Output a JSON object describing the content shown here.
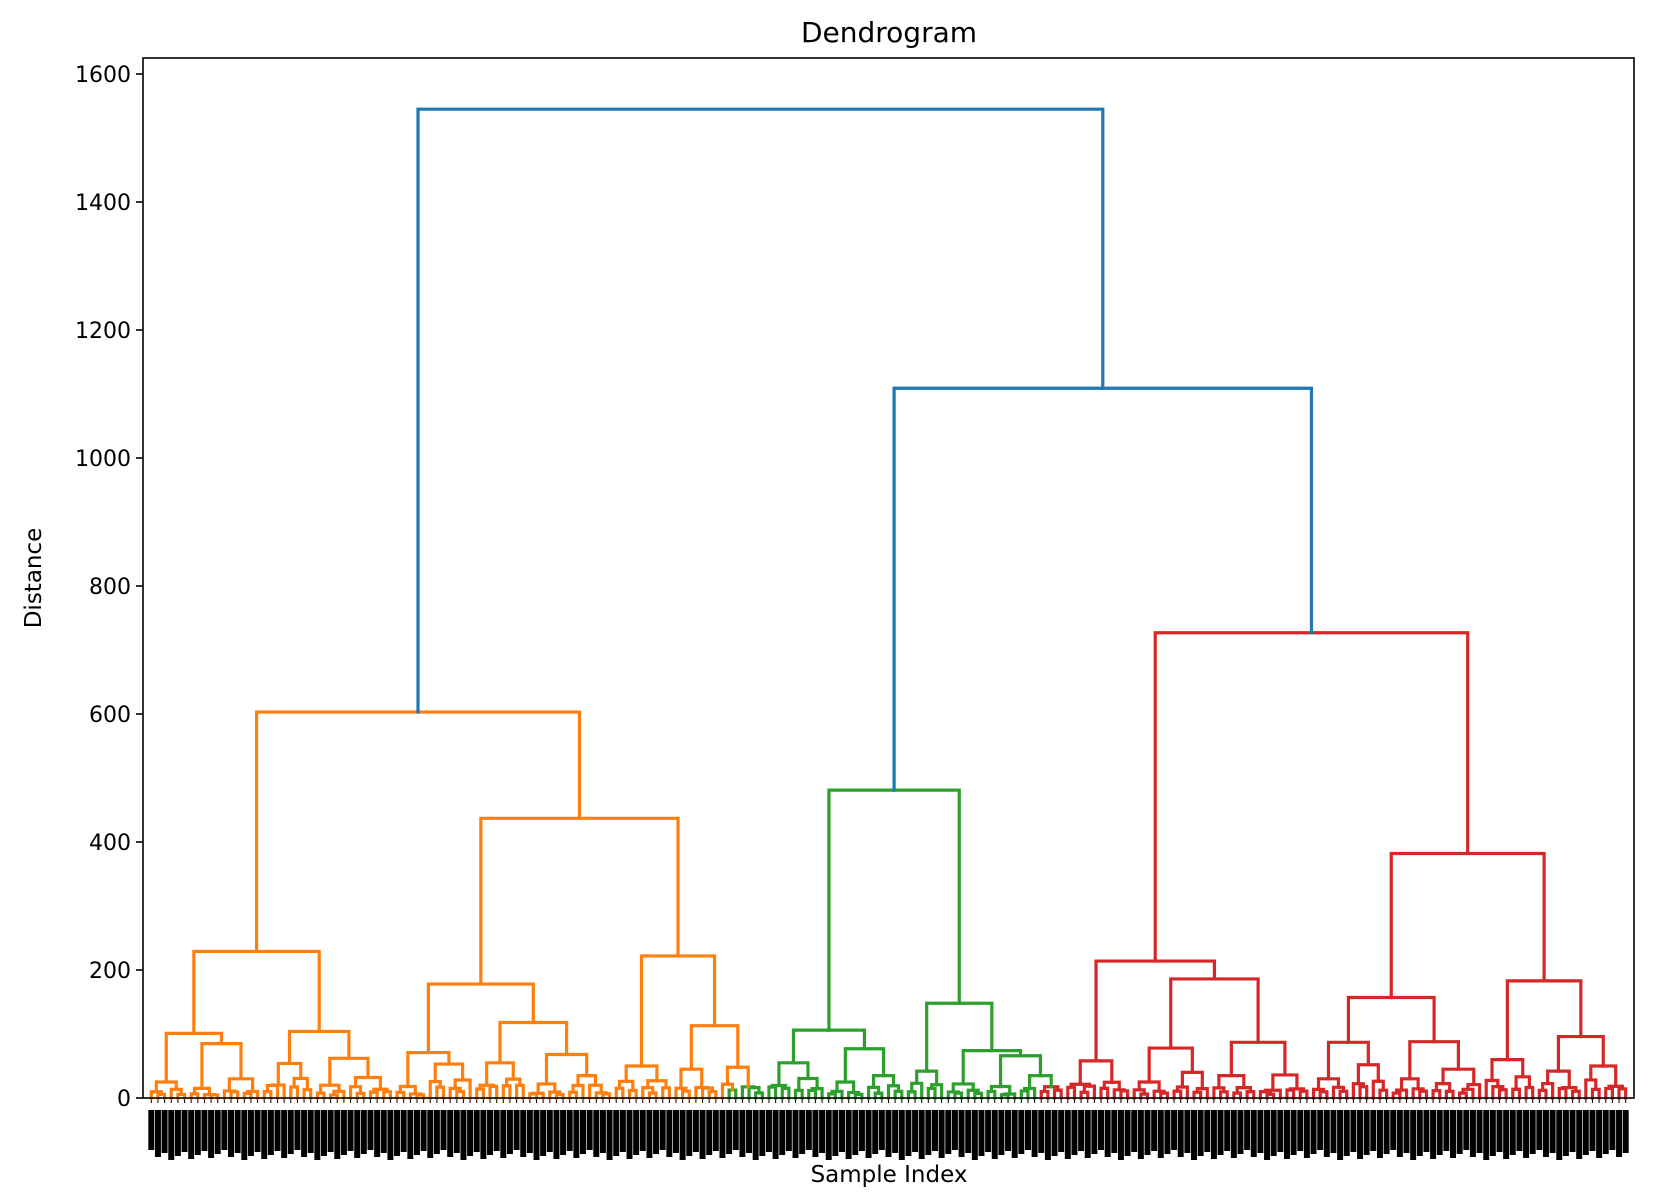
{
  "chart_data": {
    "type": "dendrogram",
    "title": "Dendrogram",
    "xlabel": "Sample Index",
    "ylabel": "Distance",
    "ylim": [
      0,
      1625
    ],
    "yticks": [
      0,
      200,
      400,
      600,
      800,
      1000,
      1200,
      1400,
      1600
    ],
    "grid": false,
    "legend": "none",
    "colors": {
      "C0": "#1f77b4",
      "C1": "#ff7f0e",
      "C2": "#2ca02c",
      "C3": "#d62728"
    },
    "clusters": [
      {
        "color": "C1",
        "height": 603,
        "leaf_range": [
          0,
          0.393
        ]
      },
      {
        "color": "C2",
        "height": 481,
        "leaf_range": [
          0.393,
          0.597
        ]
      },
      {
        "color": "C3",
        "height": 727,
        "leaf_range": [
          0.597,
          1.0
        ]
      }
    ],
    "tree": {
      "h": 1545,
      "c": "C0",
      "ch": [
        {
          "h": 603,
          "c": "C1",
          "ch": [
            {
              "h": 229,
              "c": "C1",
              "ch": [
                {
                  "h": 101,
                  "c": "C1",
                  "ch": [
                    {
                      "h": 25,
                      "n": 6,
                      "c": "C1"
                    },
                    {
                      "h": 85,
                      "c": "C1",
                      "ch": [
                        {
                          "h": 15,
                          "n": 5,
                          "c": "C1"
                        },
                        {
                          "h": 30,
                          "n": 6,
                          "c": "C1"
                        }
                      ]
                    }
                  ]
                },
                {
                  "h": 104,
                  "c": "C1",
                  "ch": [
                    {
                      "h": 54,
                      "n": 8,
                      "c": "C1"
                    },
                    {
                      "h": 62,
                      "c": "C1",
                      "ch": [
                        {
                          "h": 20,
                          "n": 5,
                          "c": "C1"
                        },
                        {
                          "h": 32,
                          "n": 7,
                          "c": "C1"
                        }
                      ]
                    }
                  ]
                }
              ]
            },
            {
              "h": 437,
              "c": "C1",
              "ch": [
                {
                  "h": 178,
                  "c": "C1",
                  "ch": [
                    {
                      "h": 71,
                      "c": "C1",
                      "ch": [
                        {
                          "h": 18,
                          "n": 5,
                          "c": "C1"
                        },
                        {
                          "h": 53,
                          "n": 7,
                          "c": "C1"
                        }
                      ]
                    },
                    {
                      "h": 118,
                      "c": "C1",
                      "ch": [
                        {
                          "h": 55,
                          "n": 8,
                          "c": "C1"
                        },
                        {
                          "h": 68,
                          "c": "C1",
                          "ch": [
                            {
                              "h": 22,
                              "n": 6,
                              "c": "C1"
                            },
                            {
                              "h": 35,
                              "n": 7,
                              "c": "C1"
                            }
                          ]
                        }
                      ]
                    }
                  ]
                },
                {
                  "h": 222,
                  "c": "C1",
                  "ch": [
                    {
                      "h": 50,
                      "n": 9,
                      "c": "C1"
                    },
                    {
                      "h": 113,
                      "c": "C1",
                      "ch": [
                        {
                          "h": 45,
                          "n": 7,
                          "c": "C1"
                        },
                        {
                          "h": 48,
                          "n": 7,
                          "c": "C1"
                        }
                      ]
                    }
                  ]
                }
              ]
            }
          ]
        },
        {
          "h": 1109,
          "c": "C0",
          "ch": [
            {
              "h": 481,
              "c": "C2",
              "ch": [
                {
                  "h": 106,
                  "c": "C2",
                  "ch": [
                    {
                      "h": 55,
                      "n": 9,
                      "c": "C2"
                    },
                    {
                      "h": 77,
                      "c": "C2",
                      "ch": [
                        {
                          "h": 25,
                          "n": 6,
                          "c": "C2"
                        },
                        {
                          "h": 35,
                          "n": 6,
                          "c": "C2"
                        }
                      ]
                    }
                  ]
                },
                {
                  "h": 148,
                  "c": "C2",
                  "ch": [
                    {
                      "h": 42,
                      "n": 6,
                      "c": "C2"
                    },
                    {
                      "h": 74,
                      "c": "C2",
                      "ch": [
                        {
                          "h": 22,
                          "n": 6,
                          "c": "C2"
                        },
                        {
                          "h": 66,
                          "c": "C2",
                          "ch": [
                            {
                              "h": 18,
                              "n": 5,
                              "c": "C2"
                            },
                            {
                              "h": 35,
                              "n": 7,
                              "c": "C2"
                            }
                          ]
                        }
                      ]
                    }
                  ]
                }
              ]
            },
            {
              "h": 727,
              "c": "C3",
              "ch": [
                {
                  "h": 214,
                  "c": "C3",
                  "ch": [
                    {
                      "h": 58,
                      "n": 10,
                      "c": "C3"
                    },
                    {
                      "h": 186,
                      "c": "C3",
                      "ch": [
                        {
                          "h": 78,
                          "c": "C3",
                          "ch": [
                            {
                              "h": 25,
                              "n": 6,
                              "c": "C3"
                            },
                            {
                              "h": 40,
                              "n": 6,
                              "c": "C3"
                            }
                          ]
                        },
                        {
                          "h": 87,
                          "c": "C3",
                          "ch": [
                            {
                              "h": 35,
                              "n": 7,
                              "c": "C3"
                            },
                            {
                              "h": 36,
                              "n": 8,
                              "c": "C3"
                            }
                          ]
                        }
                      ]
                    }
                  ]
                },
                {
                  "h": 382,
                  "c": "C3",
                  "ch": [
                    {
                      "h": 157,
                      "c": "C3",
                      "ch": [
                        {
                          "h": 87,
                          "c": "C3",
                          "ch": [
                            {
                              "h": 30,
                              "n": 6,
                              "c": "C3"
                            },
                            {
                              "h": 52,
                              "n": 6,
                              "c": "C3"
                            }
                          ]
                        },
                        {
                          "h": 88,
                          "c": "C3",
                          "ch": [
                            {
                              "h": 30,
                              "n": 6,
                              "c": "C3"
                            },
                            {
                              "h": 45,
                              "n": 8,
                              "c": "C3"
                            }
                          ]
                        }
                      ]
                    },
                    {
                      "h": 183,
                      "c": "C3",
                      "ch": [
                        {
                          "h": 60,
                          "n": 8,
                          "c": "C3"
                        },
                        {
                          "h": 96,
                          "c": "C3",
                          "ch": [
                            {
                              "h": 42,
                              "n": 7,
                              "c": "C3"
                            },
                            {
                              "h": 50,
                              "n": 7,
                              "c": "C3"
                            }
                          ]
                        }
                      ]
                    }
                  ]
                }
              ]
            }
          ]
        }
      ]
    }
  }
}
